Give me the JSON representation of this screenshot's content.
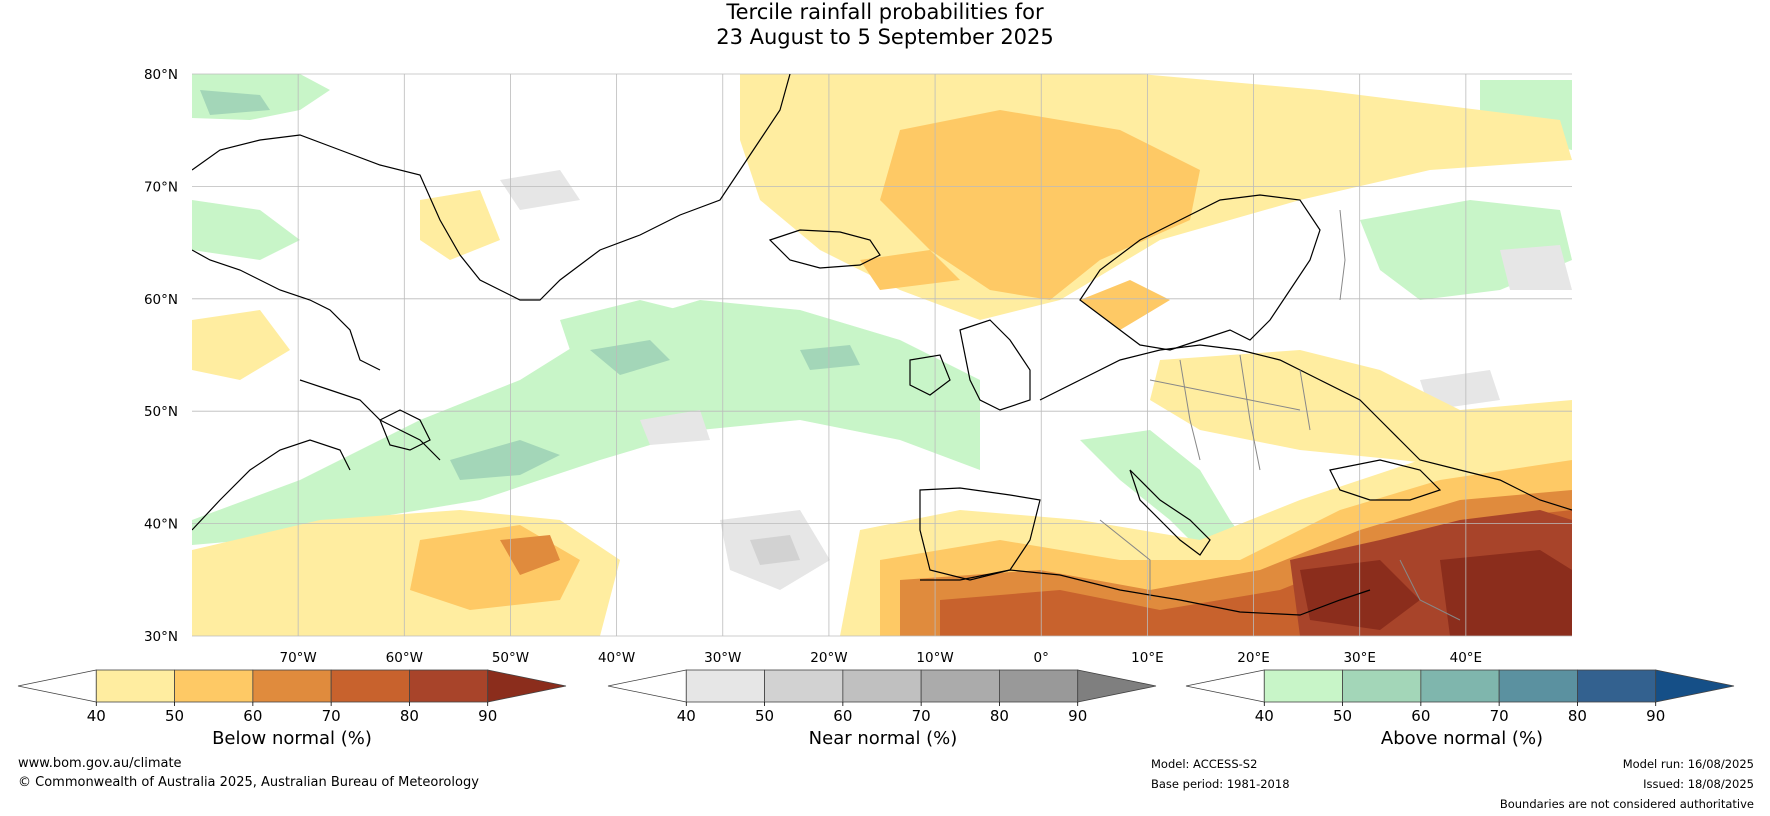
{
  "title": {
    "line1": "Tercile rainfall probabilities for",
    "line2": "23 August to 5 September 2025"
  },
  "map": {
    "lon_range": [
      -80,
      50
    ],
    "lat_range": [
      30,
      80
    ],
    "lat_ticks": [
      {
        "value": 80,
        "label": "80°N"
      },
      {
        "value": 70,
        "label": "70°N"
      },
      {
        "value": 60,
        "label": "60°N"
      },
      {
        "value": 50,
        "label": "50°N"
      },
      {
        "value": 40,
        "label": "40°N"
      },
      {
        "value": 30,
        "label": "30°N"
      }
    ],
    "lon_ticks": [
      {
        "value": -70,
        "label": "70°W"
      },
      {
        "value": -60,
        "label": "60°W"
      },
      {
        "value": -50,
        "label": "50°W"
      },
      {
        "value": -40,
        "label": "40°W"
      },
      {
        "value": -30,
        "label": "30°W"
      },
      {
        "value": -20,
        "label": "20°W"
      },
      {
        "value": -10,
        "label": "10°W"
      },
      {
        "value": 0,
        "label": "0°"
      },
      {
        "value": 10,
        "label": "10°E"
      },
      {
        "value": 20,
        "label": "20°E"
      },
      {
        "value": 30,
        "label": "30°E"
      },
      {
        "value": 40,
        "label": "40°E"
      }
    ],
    "grid": true
  },
  "colorbars": [
    {
      "id": "below",
      "title": "Below normal (%)",
      "ticks": [
        "40",
        "50",
        "60",
        "70",
        "80",
        "90"
      ],
      "colors": [
        "#ffffff",
        "#ffeda0",
        "#fec965",
        "#e08b3d",
        "#c8622d",
        "#a8442a",
        "#8b2d1c"
      ]
    },
    {
      "id": "near",
      "title": "Near normal (%)",
      "ticks": [
        "40",
        "50",
        "60",
        "70",
        "80",
        "90"
      ],
      "colors": [
        "#ffffff",
        "#e6e6e6",
        "#d2d2d2",
        "#c0c0c0",
        "#ababab",
        "#999999",
        "#7f7f7f"
      ]
    },
    {
      "id": "above",
      "title": "Above normal (%)",
      "ticks": [
        "40",
        "50",
        "60",
        "70",
        "80",
        "90"
      ],
      "colors": [
        "#ffffff",
        "#c8f5c8",
        "#a3d6b8",
        "#7fb6ad",
        "#5b91a0",
        "#33618f",
        "#154f87"
      ]
    }
  ],
  "footer": {
    "website": "www.bom.gov.au/climate",
    "copyright": "© Commonwealth of Australia 2025, Australian Bureau of Meteorology",
    "model": "Model: ACCESS-S2",
    "base_period": "Base period: 1981-2018",
    "model_run": "Model run: 16/08/2025",
    "issued": "Issued: 18/08/2025",
    "disclaimer": "Boundaries are not considered authoritative"
  }
}
